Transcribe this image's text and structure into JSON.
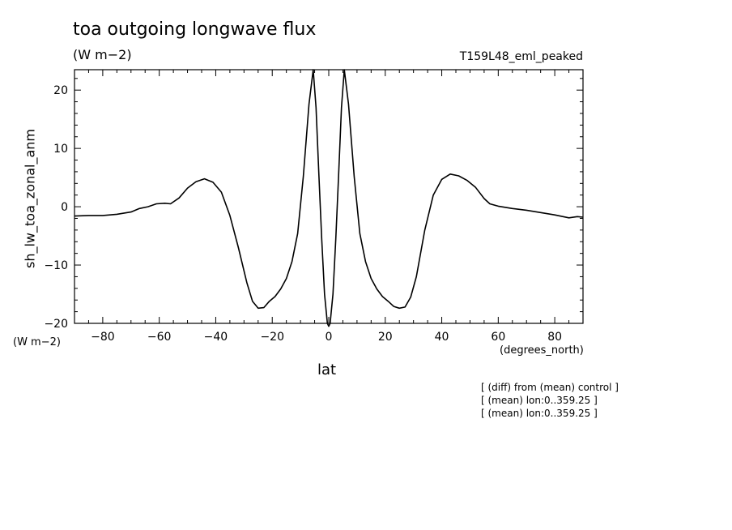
{
  "chart_data": {
    "type": "line",
    "title": "toa outgoing longwave flux",
    "units": "(W m−2)",
    "run_label": "T159L48_eml_peaked",
    "ylabel": "sh_lw_toa_zonal_anm",
    "yunits": "(W m−2)",
    "xlabel": "lat",
    "xunits": "(degrees_north)",
    "xlim": [
      -90,
      90
    ],
    "ylim": [
      -20,
      23.5
    ],
    "xticks": [
      -80,
      -60,
      -40,
      -20,
      0,
      20,
      40,
      60,
      80
    ],
    "xtick_labels": [
      "−80",
      "−60",
      "−40",
      "−20",
      "0",
      "20",
      "40",
      "60",
      "80"
    ],
    "yticks": [
      -20,
      -10,
      0,
      10,
      20
    ],
    "ytick_labels": [
      "−20",
      "−10",
      "0",
      "10",
      "20"
    ],
    "notes": [
      "[ (diff) from (mean) control ]",
      "[ (mean) lon:0..359.25 ]",
      "[ (mean) lon:0..359.25 ]"
    ],
    "series": [
      {
        "x": [
          -90,
          -85,
          -80,
          -75,
          -70,
          -67,
          -64,
          -61,
          -58,
          -56,
          -53,
          -50,
          -47,
          -44,
          -41,
          -38,
          -35,
          -32,
          -29,
          -27,
          -25,
          -23,
          -21,
          -19,
          -17,
          -15,
          -13,
          -11,
          -9,
          -7,
          -5.5,
          -4.5,
          -3.5,
          -2.5,
          -1.5,
          -0.5,
          0,
          0.5,
          1.5,
          2.5,
          3.5,
          4.5,
          5.5,
          7,
          9,
          11,
          13,
          15,
          17,
          19,
          21,
          23,
          25,
          27,
          29,
          31,
          34,
          37,
          40,
          43,
          46,
          49,
          52,
          55,
          57,
          60,
          65,
          70,
          75,
          80,
          85,
          88,
          90
        ],
        "y": [
          -1.6,
          -1.5,
          -1.5,
          -1.3,
          -0.9,
          -0.3,
          0,
          0.5,
          0.6,
          0.5,
          1.5,
          3.2,
          4.3,
          4.8,
          4.2,
          2.5,
          -1.5,
          -7.0,
          -13.0,
          -16.2,
          -17.4,
          -17.3,
          -16.2,
          -15.4,
          -14.1,
          -12.3,
          -9.4,
          -4.6,
          5.2,
          17.6,
          23.5,
          17.0,
          5.5,
          -5.5,
          -15.0,
          -20.0,
          -20.5,
          -20.0,
          -15.0,
          -5.5,
          5.5,
          17.0,
          23.5,
          17.6,
          5.2,
          -4.6,
          -9.4,
          -12.3,
          -14.1,
          -15.4,
          -16.2,
          -17.1,
          -17.4,
          -17.2,
          -15.5,
          -12.0,
          -4.0,
          2.0,
          4.7,
          5.6,
          5.3,
          4.5,
          3.3,
          1.4,
          0.5,
          0.1,
          -0.3,
          -0.6,
          -1.0,
          -1.4,
          -1.9,
          -1.7,
          -1.8
        ]
      }
    ]
  }
}
